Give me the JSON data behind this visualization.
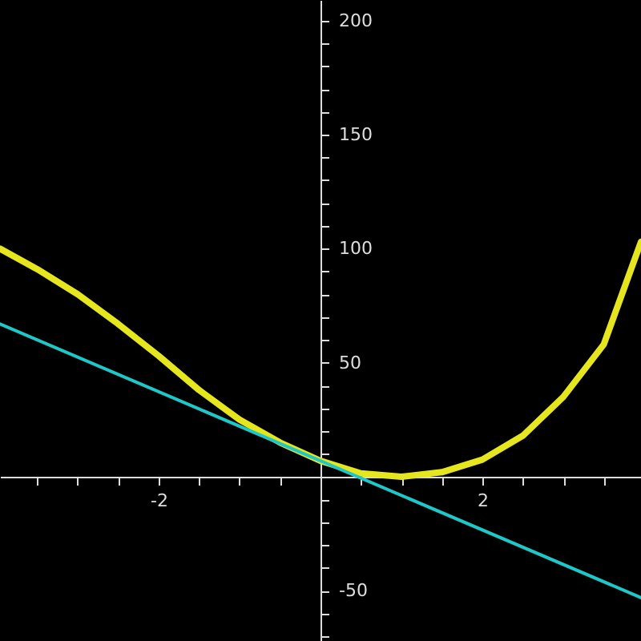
{
  "chart_data": {
    "type": "line",
    "x": [
      -3.96,
      -3.5,
      -3,
      -2.5,
      -2,
      -1.5,
      -1,
      -0.5,
      0,
      0.5,
      1,
      1.5,
      2,
      2.5,
      3,
      3.5,
      3.96
    ],
    "series": [
      {
        "color": "#e6e61e",
        "values": [
          100,
          91,
          80,
          67,
          53,
          38,
          25,
          15,
          7,
          1.5,
          0,
          2,
          7.5,
          18,
          35,
          58,
          103
        ]
      },
      {
        "color": "#1ec8c8",
        "x": [
          -3.96,
          3.96
        ],
        "values": [
          67,
          -53
        ]
      }
    ],
    "xlim": [
      -3.96,
      3.96
    ],
    "ylim": [
      -72,
      209
    ],
    "xticks": [
      {
        "value": -3.5,
        "label": null
      },
      {
        "value": -3,
        "label": null
      },
      {
        "value": -2.5,
        "label": null
      },
      -2,
      {
        "value": -1.5,
        "label": null
      },
      {
        "value": -1,
        "label": null
      },
      {
        "value": -0.5,
        "label": null
      },
      {
        "value": 0.5,
        "label": null
      },
      {
        "value": 1,
        "label": null
      },
      {
        "value": 1.5,
        "label": null
      },
      2,
      {
        "value": 2.5,
        "label": null
      },
      {
        "value": 3,
        "label": null
      },
      {
        "value": 3.5,
        "label": null
      }
    ],
    "yticks": [
      {
        "value": -70,
        "label": null
      },
      {
        "value": -60,
        "label": null
      },
      -50,
      {
        "value": -40,
        "label": null
      },
      {
        "value": -30,
        "label": null
      },
      {
        "value": -20,
        "label": null
      },
      {
        "value": -10,
        "label": null
      },
      {
        "value": 10,
        "label": null
      },
      {
        "value": 20,
        "label": null
      },
      {
        "value": 30,
        "label": null
      },
      {
        "value": 40,
        "label": null
      },
      50,
      {
        "value": 60,
        "label": null
      },
      {
        "value": 70,
        "label": null
      },
      {
        "value": 80,
        "label": null
      },
      {
        "value": 90,
        "label": null
      },
      100,
      {
        "value": 110,
        "label": null
      },
      {
        "value": 120,
        "label": null
      },
      {
        "value": 130,
        "label": null
      },
      {
        "value": 140,
        "label": null
      },
      150,
      {
        "value": 160,
        "label": null
      },
      {
        "value": 170,
        "label": null
      },
      {
        "value": 180,
        "label": null
      },
      {
        "value": 190,
        "label": null
      },
      200
    ],
    "grid": false
  }
}
